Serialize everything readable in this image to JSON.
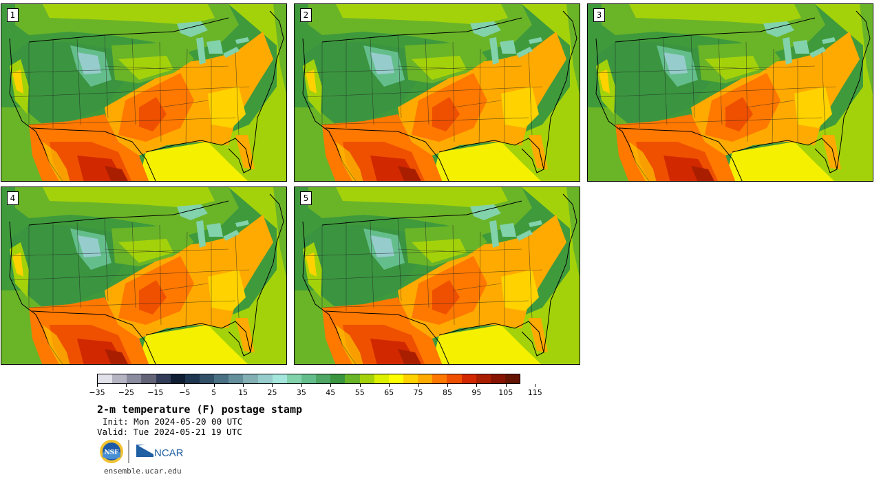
{
  "panels": [
    {
      "label": "1"
    },
    {
      "label": "2"
    },
    {
      "label": "3"
    },
    {
      "label": "4"
    },
    {
      "label": "5"
    }
  ],
  "colorbar": {
    "colors": [
      "#e1e1ea",
      "#b4b4c3",
      "#8c8ca0",
      "#646478",
      "#323c58",
      "#0f1e32",
      "#1e3650",
      "#325068",
      "#4a7084",
      "#64909c",
      "#82b0b4",
      "#96cccc",
      "#a4e6dc",
      "#82d2ac",
      "#64be8c",
      "#4ea664",
      "#3a9440",
      "#6ab428",
      "#a4d20a",
      "#dcf000",
      "#ffff00",
      "#ffd200",
      "#ffaa00",
      "#ff7800",
      "#ee5000",
      "#d22800",
      "#aa1e00",
      "#871400",
      "#641400"
    ],
    "ticks": [
      "−35",
      "−25",
      "−15",
      "−5",
      "5",
      "15",
      "25",
      "35",
      "45",
      "55",
      "65",
      "75",
      "85",
      "95",
      "105",
      "115"
    ]
  },
  "title": "2-m temperature (F) postage stamp",
  "init": "Init: Mon 2024-05-20 00 UTC",
  "valid": "Valid: Tue 2024-05-21 19 UTC",
  "logos": {
    "nsf": "NSF",
    "ncar": "NCAR"
  },
  "url": "ensemble.ucar.edu"
}
